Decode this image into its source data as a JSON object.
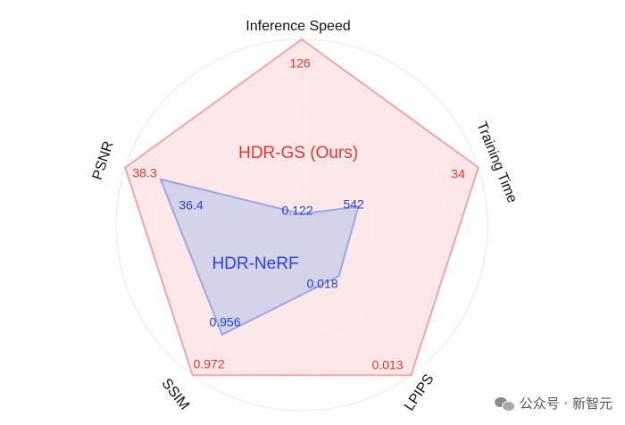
{
  "chart_data": {
    "type": "radar",
    "axes": [
      "Inference Speed",
      "Training Time",
      "LPIPS",
      "SSIM",
      "PSNR"
    ],
    "series": [
      {
        "name": "HDR-GS (Ours)",
        "color": "#e03a2f",
        "fill": "#fbe4e4",
        "labels": [
          "126",
          "34",
          "0.013",
          "0.972",
          "38.3"
        ],
        "values": [
          126,
          34,
          0.013,
          0.972,
          38.3
        ],
        "normalized": [
          1,
          1,
          1,
          1,
          1
        ]
      },
      {
        "name": "HDR-NeRF",
        "color": "#2446d6",
        "fill": "#c9cde9",
        "labels": [
          "0.122",
          "542",
          "0.018",
          "0.956",
          "36.4"
        ],
        "values": [
          0.122,
          542,
          0.018,
          0.956,
          36.4
        ],
        "normalized": [
          0.06,
          0.32,
          0.34,
          0.73,
          0.8
        ]
      }
    ],
    "grid": true,
    "grid_shape": "circle",
    "legend": "none"
  },
  "watermark": {
    "text": "公众号 · 新智元",
    "icon": "wechat-icon"
  }
}
